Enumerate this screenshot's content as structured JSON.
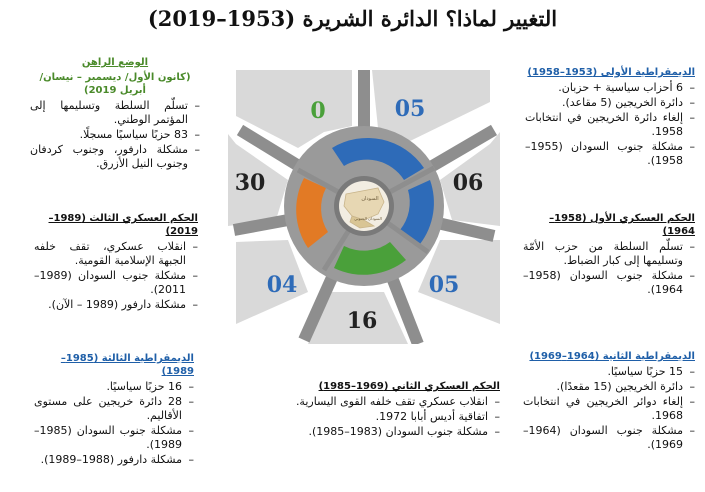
{
  "title": "التغيير لماذا؟ الدائرة الشريرة (1953–2019)",
  "colors": {
    "blue": "#2e6bb8",
    "green": "#4aa03a",
    "orange": "#e27a25",
    "gray_ring": "#8e8e8e",
    "panel": "#d9d9d9",
    "dark": "#222222"
  },
  "center": {
    "map_icon": "sudan-map-icon",
    "map_labels": [
      "السودان",
      "السودان الجنوبي"
    ]
  },
  "segments": [
    {
      "label": "05",
      "color": "blue"
    },
    {
      "label": "06",
      "color": "dark"
    },
    {
      "label": "05",
      "color": "blue"
    },
    {
      "label": "16",
      "color": "dark"
    },
    {
      "label": "04",
      "color": "blue"
    },
    {
      "label": "30",
      "color": "dark"
    },
    {
      "label": "0",
      "color": "green"
    }
  ],
  "periods": {
    "dem1": {
      "heading": "الديمقراطية الأولى (1953–1958)",
      "items": [
        "6 أحزاب سياسية + حزبان.",
        "دائرة الخريجين (5 مقاعد).",
        "إلغاء دائرة الخريجين في انتخابات 1958.",
        "مشكلة جنوب السودان (1955–1958)."
      ]
    },
    "mil1": {
      "heading": "الحكم العسكري الأول (1958–1964)",
      "items": [
        "تسلّم السلطة من حزب الأمّة وتسليمها إلى كبار الضباط.",
        "مشكلة جنوب السودان (1958–1964)."
      ]
    },
    "dem2": {
      "heading": "الديمقراطية الثانية (1964–1969)",
      "items": [
        "15 حزبًا سياسيًا.",
        "دائرة الخريجين (15 مقعدًا).",
        "إلغاء دوائر الخريجين في انتخابات 1968.",
        "مشكلة جنوب السودان (1964–1969)."
      ]
    },
    "mil2": {
      "heading": "الحكم العسكري الثاني (1969–1985)",
      "items": [
        "انقلاب عسكري تقف خلفه القوى اليسارية.",
        "اتفاقية أديس أبابا 1972.",
        "مشكلة جنوب السودان (1983–1985)."
      ]
    },
    "dem3": {
      "heading": "الديمقراطية الثالثة (1985–1989)",
      "items": [
        "16 حزبًا سياسيًا.",
        "28 دائرة خريجين على مستوى الأقاليم.",
        "مشكلة جنوب السودان (1985–1989).",
        "مشكلة دارفور (1988–1989)."
      ]
    },
    "mil3": {
      "heading": "الحكم العسكري الثالث (1989–2019)",
      "items": [
        "انقلاب عسكري، تقف خلفه الجبهة الإسلامية القومية.",
        "مشكلة جنوب السودان (1989–2011).",
        "مشكلة دارفور (1989 – الآن)."
      ]
    },
    "now": {
      "heading": "الوضع الراهن",
      "subheading": "(كانون الأول/ ديسمبر – نيسان/ أبريل 2019)",
      "items": [
        "تسلّم السلطة وتسليمها إلى المؤتمر الوطني.",
        "83 حزبًا سياسيًا مسجلًا.",
        "مشكلة دارفور، وجنوب كردفان وجنوب النيل الأزرق."
      ]
    }
  }
}
